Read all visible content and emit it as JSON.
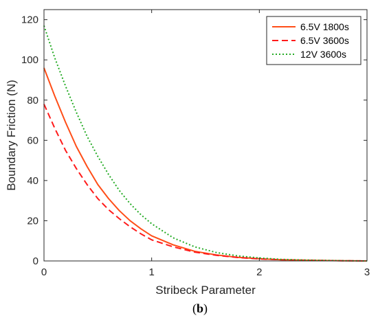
{
  "chart_data": {
    "type": "line",
    "xlabel": "Stribeck Parameter",
    "ylabel": "Boundary Friction (N)",
    "xlim": [
      0,
      3
    ],
    "ylim": [
      0,
      125
    ],
    "xticks": [
      0,
      1,
      2,
      3
    ],
    "yticks": [
      0,
      20,
      40,
      60,
      80,
      100,
      120
    ],
    "grid": false,
    "legend_position": "top-right",
    "caption": {
      "open": "(",
      "letter": "b",
      "close": ")"
    },
    "series": [
      {
        "name": "6.5V 1800s",
        "color": "#ff4d17",
        "style": "solid",
        "x": [
          0,
          0.1,
          0.2,
          0.3,
          0.4,
          0.5,
          0.6,
          0.7,
          0.8,
          0.9,
          1.0,
          1.2,
          1.4,
          1.6,
          1.8,
          2.0,
          2.2,
          2.4,
          2.6,
          2.8,
          3.0
        ],
        "y": [
          96,
          82,
          69,
          57,
          47,
          38,
          31,
          25,
          20,
          16,
          12.5,
          8,
          4.8,
          3,
          1.8,
          1.1,
          0.6,
          0.4,
          0.2,
          0.1,
          0
        ]
      },
      {
        "name": "6.5V 3600s",
        "color": "#ff1a1a",
        "style": "dashed",
        "x": [
          0,
          0.1,
          0.2,
          0.3,
          0.4,
          0.5,
          0.6,
          0.7,
          0.8,
          0.9,
          1.0,
          1.2,
          1.4,
          1.6,
          1.8,
          2.0,
          2.2,
          2.4,
          2.6,
          2.8,
          3.0
        ],
        "y": [
          78,
          66,
          55,
          46,
          38,
          31,
          25.5,
          21,
          17,
          13.5,
          10.5,
          7,
          4.4,
          2.8,
          1.7,
          1,
          0.6,
          0.4,
          0.2,
          0.1,
          0
        ]
      },
      {
        "name": "12V 3600s",
        "color": "#22aa22",
        "style": "dotted",
        "x": [
          0,
          0.1,
          0.2,
          0.3,
          0.4,
          0.5,
          0.6,
          0.7,
          0.8,
          0.9,
          1.0,
          1.2,
          1.4,
          1.6,
          1.8,
          2.0,
          2.2,
          2.4,
          2.6,
          2.8,
          3.0
        ],
        "y": [
          117,
          101,
          87,
          74,
          62,
          52,
          43,
          35,
          28.5,
          23,
          18.5,
          11.5,
          7,
          4.2,
          2.5,
          1.5,
          0.8,
          0.5,
          0.3,
          0.1,
          0
        ]
      }
    ]
  }
}
